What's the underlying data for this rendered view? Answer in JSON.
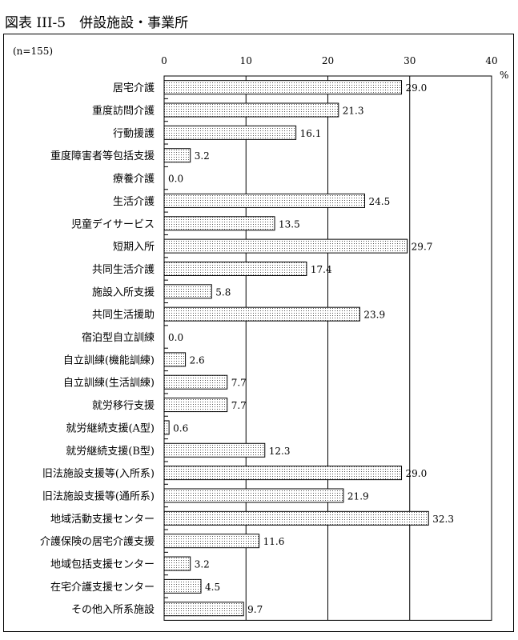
{
  "title": "図表 III-5　併設施設・事業所",
  "chart_data": {
    "type": "bar",
    "orientation": "horizontal",
    "title": "図表 III-5　併設施設・事業所",
    "note": "(n=155)",
    "unit": "%",
    "xlim": [
      0,
      40
    ],
    "ticks": [
      0,
      10,
      20,
      30,
      40
    ],
    "grid": true,
    "bar_pattern": "dotted",
    "categories": [
      "居宅介護",
      "重度訪問介護",
      "行動援護",
      "重度障害者等包括支援",
      "療養介護",
      "生活介護",
      "児童デイサービス",
      "短期入所",
      "共同生活介護",
      "施設入所支援",
      "共同生活援助",
      "宿泊型自立訓練",
      "自立訓練(機能訓練)",
      "自立訓練(生活訓練)",
      "就労移行支援",
      "就労継続支援(A型)",
      "就労継続支援(B型)",
      "旧法施設支援等(入所系)",
      "旧法施設支援等(通所系)",
      "地域活動支援センター",
      "介護保険の居宅介護支援",
      "地域包括支援センター",
      "在宅介護支援センター",
      "その他入所系施設"
    ],
    "values": [
      29.0,
      21.3,
      16.1,
      3.2,
      0.0,
      24.5,
      13.5,
      29.7,
      17.4,
      5.8,
      23.9,
      0.0,
      2.6,
      7.7,
      7.7,
      0.6,
      12.3,
      29.0,
      21.9,
      32.3,
      11.6,
      3.2,
      4.5,
      9.7
    ]
  }
}
